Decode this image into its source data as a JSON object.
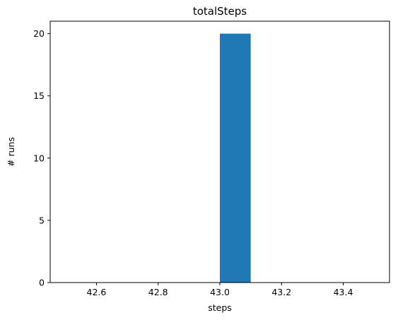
{
  "chart_data": {
    "type": "bar",
    "title": "totalSteps",
    "xlabel": "steps",
    "ylabel": "# runs",
    "xlim": [
      42.45,
      43.55
    ],
    "ylim": [
      0,
      21
    ],
    "x_ticks": [
      42.6,
      42.8,
      43.0,
      43.2,
      43.4
    ],
    "x_tick_labels": [
      "42.6",
      "42.8",
      "43.0",
      "43.2",
      "43.4"
    ],
    "y_ticks": [
      0,
      5,
      10,
      15,
      20
    ],
    "y_tick_labels": [
      "0",
      "5",
      "10",
      "15",
      "20"
    ],
    "bins": [
      {
        "start": 43.0,
        "end": 43.1,
        "value": 20
      }
    ],
    "grid": false,
    "bar_color": "#1f77b4"
  }
}
